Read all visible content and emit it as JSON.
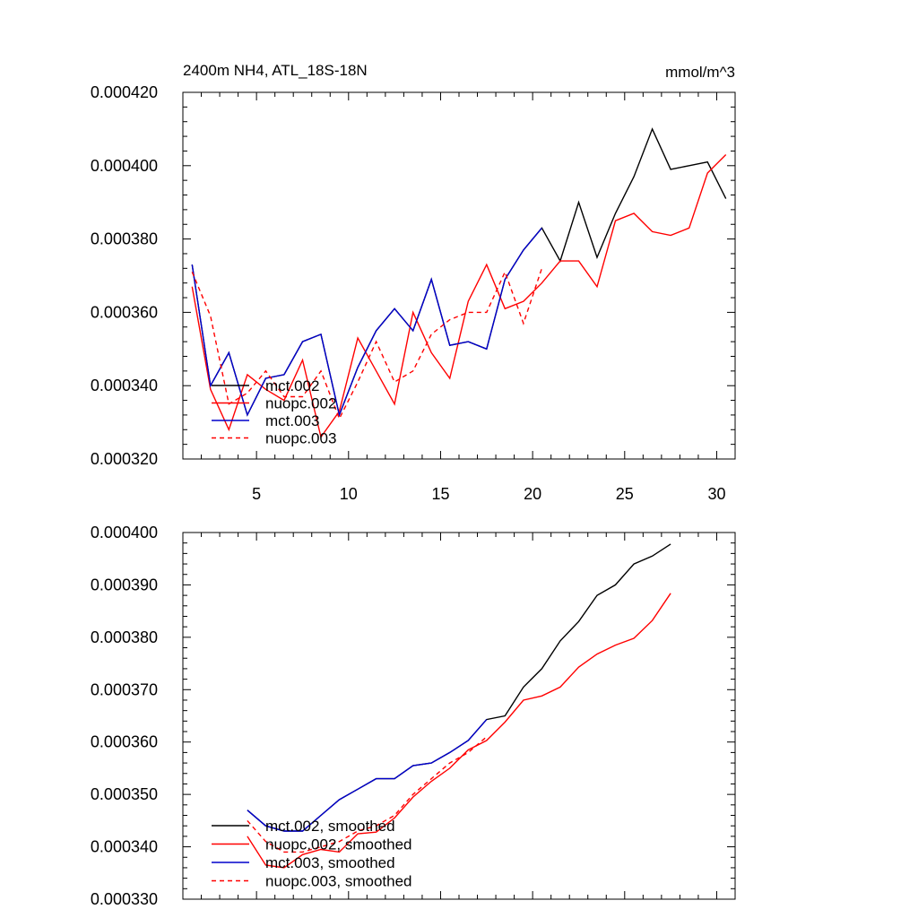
{
  "chart_data": [
    {
      "type": "line",
      "title": "2400m NH4, ATL_18S-18N",
      "units": "mmol/m^3",
      "xlim": [
        1,
        31
      ],
      "ylim": [
        0.00032,
        0.00042
      ],
      "xticks": [
        5,
        10,
        15,
        20,
        25,
        30
      ],
      "yticks": [
        0.00032,
        0.00034,
        0.00036,
        0.00038,
        0.0004,
        0.00042
      ],
      "ytick_labels": [
        "0.000320",
        "0.000340",
        "0.000360",
        "0.000380",
        "0.000400",
        "0.000420"
      ],
      "legend_position": "bottom-left",
      "series": [
        {
          "name": "mct.002",
          "color": "#000000",
          "dash": "solid",
          "x": [
            1.5,
            2.5,
            3.5,
            4.5,
            5.5,
            6.5,
            7.5,
            8.5,
            9.5,
            10.5,
            11.5,
            12.5,
            13.5,
            14.5,
            15.5,
            16.5,
            17.5,
            18.5,
            19.5,
            20.5,
            21.5,
            22.5,
            23.5,
            24.5,
            25.5,
            26.5,
            27.5,
            28.5,
            29.5,
            30.5
          ],
          "y": [
            0.000373,
            0.00034,
            0.000349,
            0.000332,
            0.000342,
            0.000343,
            0.000352,
            0.000354,
            0.000332,
            0.000345,
            0.000355,
            0.000361,
            0.000355,
            0.000369,
            0.000351,
            0.000352,
            0.00035,
            0.000369,
            0.000377,
            0.000383,
            0.000374,
            0.00039,
            0.000375,
            0.000387,
            0.000397,
            0.00041,
            0.000399,
            0.0004,
            0.000401,
            0.000391
          ]
        },
        {
          "name": "nuopc.002",
          "color": "#ff0000",
          "dash": "solid",
          "x": [
            1.5,
            2.5,
            3.5,
            4.5,
            5.5,
            6.5,
            7.5,
            8.5,
            9.5,
            10.5,
            11.5,
            12.5,
            13.5,
            14.5,
            15.5,
            16.5,
            17.5,
            18.5,
            19.5,
            20.5,
            21.5,
            22.5,
            23.5,
            24.5,
            25.5,
            26.5,
            27.5,
            28.5,
            29.5,
            30.5
          ],
          "y": [
            0.000367,
            0.000339,
            0.000328,
            0.000343,
            0.000339,
            0.000336,
            0.000347,
            0.000326,
            0.000333,
            0.000353,
            0.000344,
            0.000335,
            0.00036,
            0.000349,
            0.000342,
            0.000363,
            0.000373,
            0.000361,
            0.000363,
            0.000368,
            0.000374,
            0.000374,
            0.000367,
            0.000385,
            0.000387,
            0.000382,
            0.000381,
            0.000383,
            0.000398,
            0.000403
          ]
        },
        {
          "name": "mct.003",
          "color": "#0000cc",
          "dash": "solid",
          "x": [
            1.5,
            2.5,
            3.5,
            4.5,
            5.5,
            6.5,
            7.5,
            8.5,
            9.5,
            10.5,
            11.5,
            12.5,
            13.5,
            14.5,
            15.5,
            16.5,
            17.5,
            18.5,
            19.5,
            20.5
          ],
          "y": [
            0.000373,
            0.00034,
            0.000349,
            0.000332,
            0.000342,
            0.000343,
            0.000352,
            0.000354,
            0.000332,
            0.000345,
            0.000355,
            0.000361,
            0.000355,
            0.000369,
            0.000351,
            0.000352,
            0.00035,
            0.000369,
            0.000377,
            0.000383
          ]
        },
        {
          "name": "nuopc.003",
          "color": "#ff0000",
          "dash": "dashed",
          "x": [
            1.5,
            2.5,
            3.5,
            4.5,
            5.5,
            6.5,
            7.5,
            8.5,
            9.5,
            10.5,
            11.5,
            12.5,
            13.5,
            14.5,
            15.5,
            16.5,
            17.5,
            18.5,
            19.5,
            20.5
          ],
          "y": [
            0.000371,
            0.000359,
            0.000335,
            0.000338,
            0.000344,
            0.000337,
            0.000337,
            0.000344,
            0.000331,
            0.000341,
            0.000352,
            0.000341,
            0.000344,
            0.000354,
            0.000358,
            0.00036,
            0.00036,
            0.000371,
            0.000357,
            0.000372
          ]
        }
      ]
    },
    {
      "type": "line",
      "xlim": [
        1,
        31
      ],
      "ylim": [
        0.00033,
        0.0004
      ],
      "xticks": [
        5,
        10,
        15,
        20,
        25,
        30
      ],
      "yticks": [
        0.00033,
        0.00034,
        0.00035,
        0.00036,
        0.00037,
        0.00038,
        0.00039,
        0.0004
      ],
      "ytick_labels": [
        "0.000330",
        "0.000340",
        "0.000350",
        "0.000360",
        "0.000370",
        "0.000380",
        "0.000390",
        "0.000400"
      ],
      "legend_position": "bottom-left",
      "series": [
        {
          "name": "mct.002, smoothed",
          "color": "#000000",
          "dash": "solid",
          "x": [
            4.5,
            5.5,
            6.5,
            7.5,
            8.5,
            9.5,
            10.5,
            11.5,
            12.5,
            13.5,
            14.5,
            15.5,
            16.5,
            17.5,
            18.5,
            19.5,
            20.5,
            21.5,
            22.5,
            23.5,
            24.5,
            25.5,
            26.5,
            27.5
          ],
          "y": [
            0.000347,
            0.000344,
            0.000343,
            0.000343,
            0.000346,
            0.000349,
            0.000351,
            0.000353,
            0.000353,
            0.0003555,
            0.000356,
            0.000358,
            0.0003603,
            0.0003643,
            0.000365,
            0.0003705,
            0.000374,
            0.0003793,
            0.000383,
            0.000388,
            0.00039,
            0.000394,
            0.0003955,
            0.0003978
          ]
        },
        {
          "name": "nuopc.002, smoothed",
          "color": "#ff0000",
          "dash": "solid",
          "x": [
            4.5,
            5.5,
            6.5,
            7.5,
            8.5,
            9.5,
            10.5,
            11.5,
            12.5,
            13.5,
            14.5,
            15.5,
            16.5,
            17.5,
            18.5,
            19.5,
            20.5,
            21.5,
            22.5,
            23.5,
            24.5,
            25.5,
            26.5,
            27.5
          ],
          "y": [
            0.000342,
            0.0003365,
            0.000336,
            0.0003385,
            0.0003395,
            0.000339,
            0.0003425,
            0.0003428,
            0.0003455,
            0.0003495,
            0.0003525,
            0.000355,
            0.0003585,
            0.0003603,
            0.0003638,
            0.000368,
            0.0003688,
            0.0003705,
            0.0003743,
            0.0003768,
            0.0003785,
            0.0003798,
            0.0003832,
            0.0003884
          ]
        },
        {
          "name": "mct.003, smoothed",
          "color": "#0000cc",
          "dash": "solid",
          "x": [
            4.5,
            5.5,
            6.5,
            7.5,
            8.5,
            9.5,
            10.5,
            11.5,
            12.5,
            13.5,
            14.5,
            15.5,
            16.5,
            17.5
          ],
          "y": [
            0.000347,
            0.000344,
            0.000343,
            0.000343,
            0.000346,
            0.000349,
            0.000351,
            0.000353,
            0.000353,
            0.0003555,
            0.000356,
            0.000358,
            0.0003603,
            0.0003643
          ]
        },
        {
          "name": "nuopc.003, smoothed",
          "color": "#ff0000",
          "dash": "dashed",
          "x": [
            4.5,
            5.5,
            6.5,
            7.5,
            8.5,
            9.5,
            10.5,
            11.5,
            12.5,
            13.5,
            14.5,
            15.5,
            16.5,
            17.5
          ],
          "y": [
            0.000345,
            0.000341,
            0.000339,
            0.000339,
            0.00034,
            0.000341,
            0.000343,
            0.000344,
            0.000346,
            0.00035,
            0.000353,
            0.000356,
            0.000358,
            0.000361
          ]
        }
      ]
    }
  ]
}
